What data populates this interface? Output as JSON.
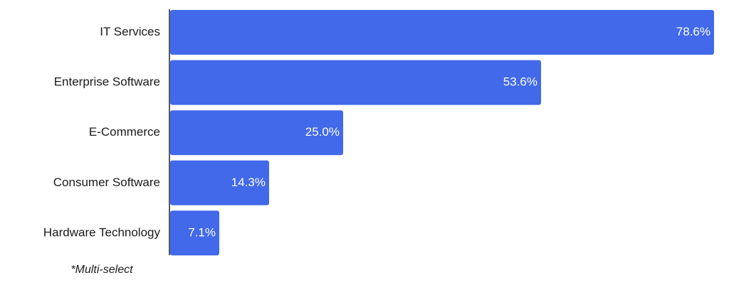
{
  "chart_data": {
    "type": "bar",
    "orientation": "horizontal",
    "categories": [
      "IT Services",
      "Enterprise Software",
      "E-Commerce",
      "Consumer Software",
      "Hardware Technology"
    ],
    "values": [
      78.6,
      53.6,
      25.0,
      14.3,
      7.1
    ],
    "value_labels": [
      "78.6%",
      "53.6%",
      "25.0%",
      "14.3%",
      "7.1%"
    ],
    "color": "#4169e9",
    "footnote": "*Multi-select"
  }
}
